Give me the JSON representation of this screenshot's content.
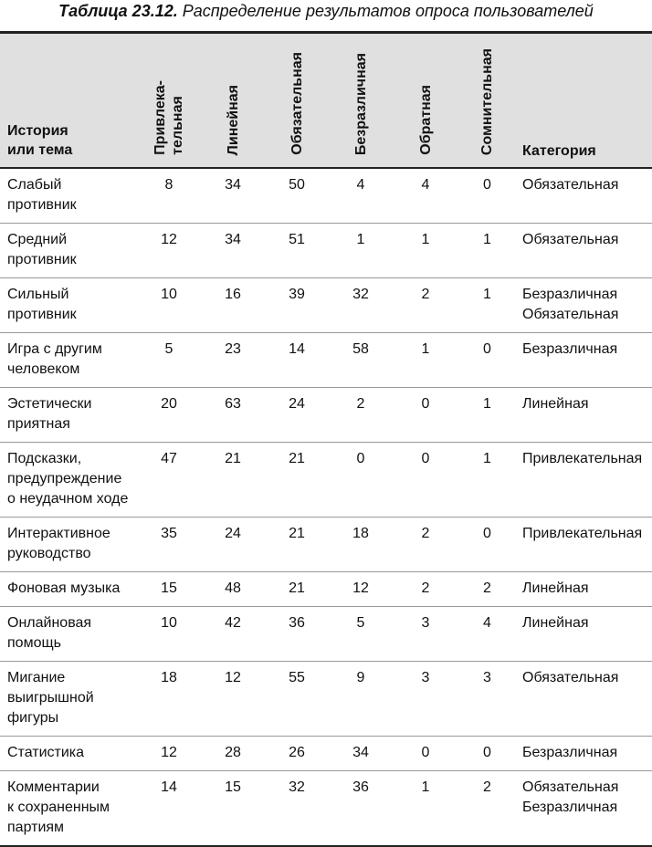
{
  "caption": {
    "label": "Таблица 23.12.",
    "text": "Распределение результатов опроса пользователей"
  },
  "headers": {
    "name": "История\nили тема",
    "cols": [
      "Привлека-\nтельная",
      "Линейная",
      "Обязательная",
      "Безразличная",
      "Обратная",
      "Сомнительная"
    ],
    "category": "Категория"
  },
  "rows": [
    {
      "name": "Слабый\nпротивник",
      "values": [
        "8",
        "34",
        "50",
        "4",
        "4",
        "0"
      ],
      "category": "Обязательная"
    },
    {
      "name": "Средний\nпротивник",
      "values": [
        "12",
        "34",
        "51",
        "1",
        "1",
        "1"
      ],
      "category": "Обязательная"
    },
    {
      "name": "Сильный\nпротивник",
      "values": [
        "10",
        "16",
        "39",
        "32",
        "2",
        "1"
      ],
      "category": "Безразличная\nОбязательная"
    },
    {
      "name": "Игра с другим\nчеловеком",
      "values": [
        "5",
        "23",
        "14",
        "58",
        "1",
        "0"
      ],
      "category": "Безразличная"
    },
    {
      "name": "Эстетически\nприятная",
      "values": [
        "20",
        "63",
        "24",
        "2",
        "0",
        "1"
      ],
      "category": "Линейная"
    },
    {
      "name": "Подсказки,\nпредупреждение\nо неудачном ходе",
      "values": [
        "47",
        "21",
        "21",
        "0",
        "0",
        "1"
      ],
      "category": "Привлекательная"
    },
    {
      "name": "Интерактивное\nруководство",
      "values": [
        "35",
        "24",
        "21",
        "18",
        "2",
        "0"
      ],
      "category": "Привлекательная"
    },
    {
      "name": "Фоновая музыка",
      "values": [
        "15",
        "48",
        "21",
        "12",
        "2",
        "2"
      ],
      "category": "Линейная"
    },
    {
      "name": "Онлайновая\nпомощь",
      "values": [
        "10",
        "42",
        "36",
        "5",
        "3",
        "4"
      ],
      "category": "Линейная"
    },
    {
      "name": "Мигание\nвыигрышной\nфигуры",
      "values": [
        "18",
        "12",
        "55",
        "9",
        "3",
        "3"
      ],
      "category": "Обязательная"
    },
    {
      "name": "Статистика",
      "values": [
        "12",
        "28",
        "26",
        "34",
        "0",
        "0"
      ],
      "category": "Безразличная"
    },
    {
      "name": "Комментарии\nк сохраненным\nпартиям",
      "values": [
        "14",
        "15",
        "32",
        "36",
        "1",
        "2"
      ],
      "category": "Обязательная\nБезразличная"
    }
  ]
}
